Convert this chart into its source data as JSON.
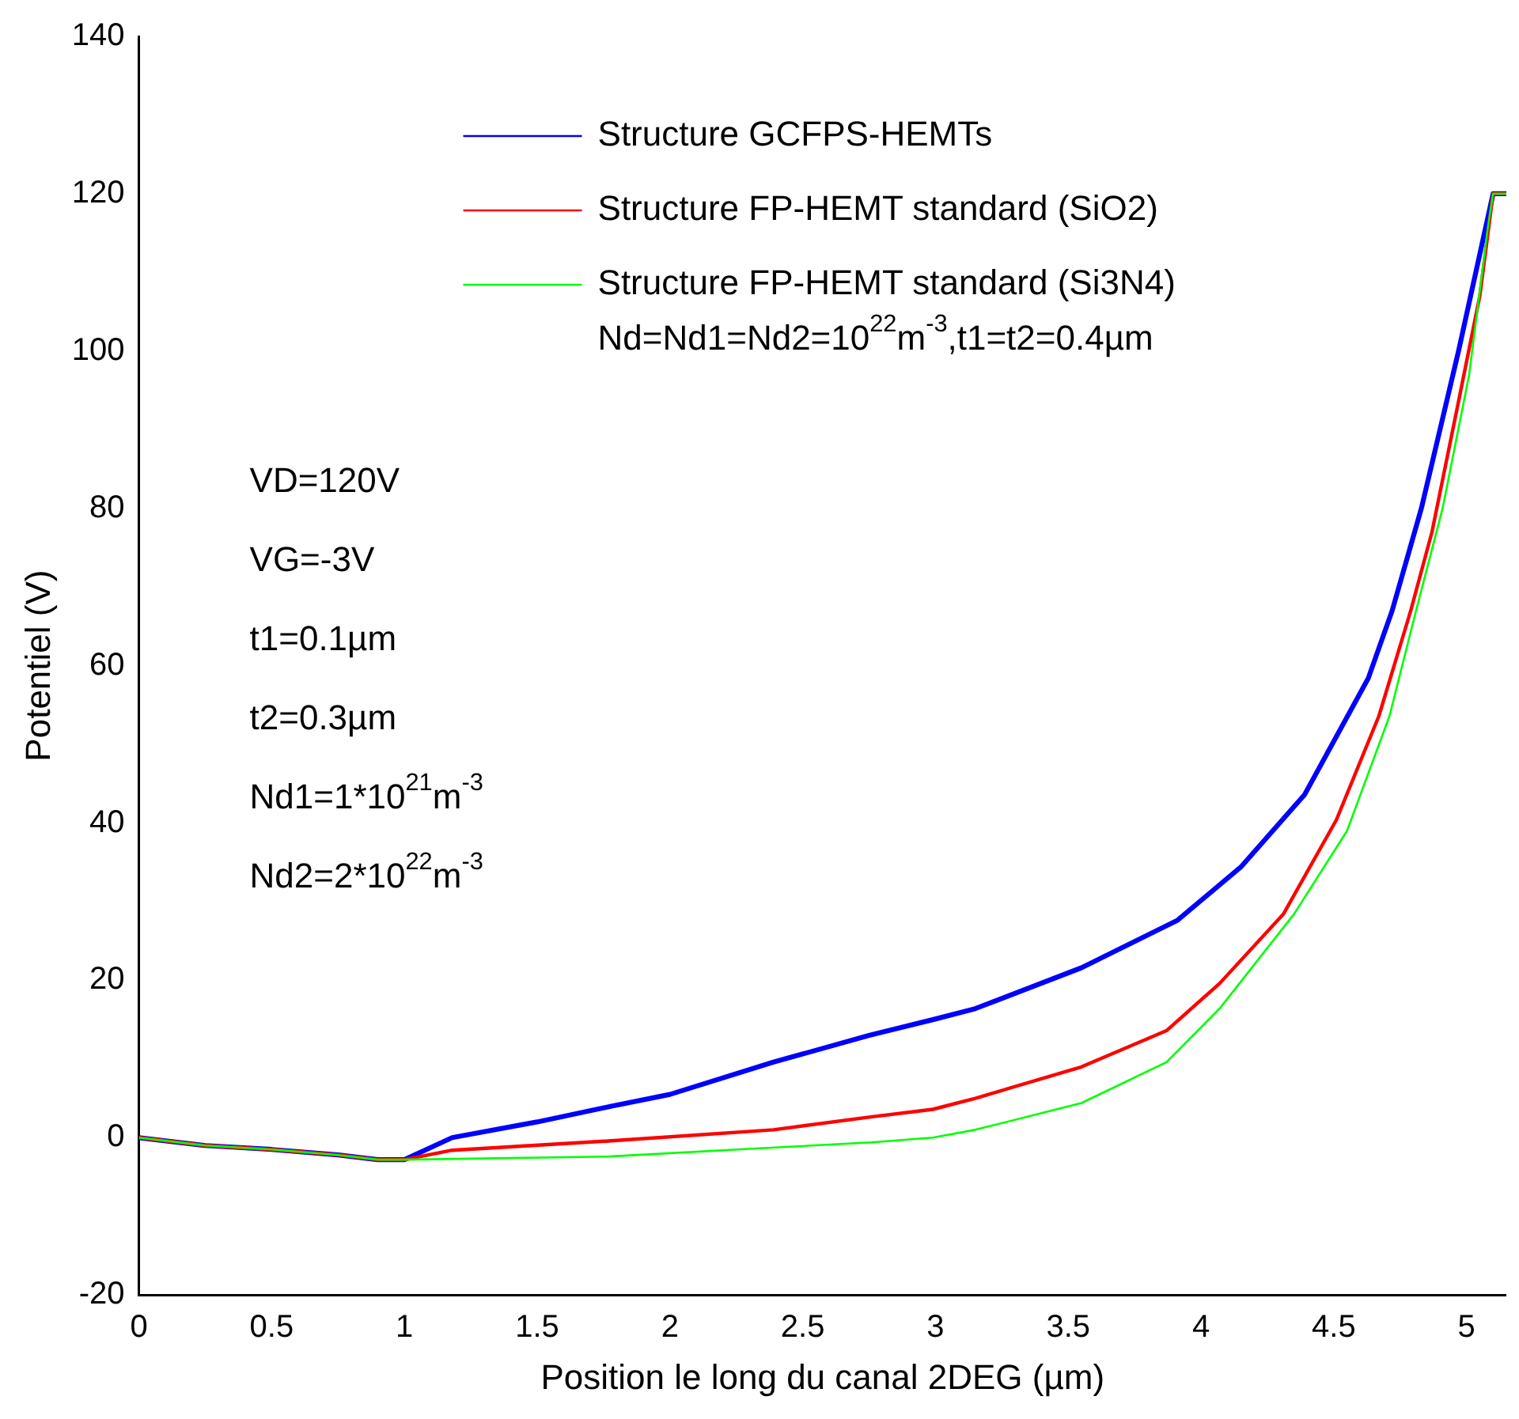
{
  "chart_data": {
    "type": "line",
    "xlabel": "Position le long du canal 2DEG (µm)",
    "ylabel": "Potentiel (V)",
    "xlim": [
      0,
      5.15
    ],
    "xticks": [
      0,
      0.5,
      1,
      1.5,
      2,
      2.5,
      3,
      3.5,
      4,
      4.5,
      5
    ],
    "ylim": [
      -20,
      140
    ],
    "yticks": [
      -20,
      0,
      20,
      40,
      60,
      80,
      100,
      120,
      140
    ],
    "grid": false,
    "legend": "top",
    "line_style": "solid",
    "marker": "none",
    "series": [
      {
        "name": "Structure GCFPS-HEMTs",
        "color": "#0000ff",
        "x": [
          0,
          0.25,
          0.5,
          0.75,
          0.9,
          1.0,
          1.18,
          1.5,
          1.78,
          2.0,
          2.39,
          2.75,
          2.99,
          3.15,
          3.55,
          3.91,
          4.15,
          4.39,
          4.63,
          4.72,
          4.83,
          4.97,
          5.1,
          5.15
        ],
        "values": [
          0,
          -1,
          -1.5,
          -2.2,
          -2.8,
          -2.8,
          0,
          2,
          4,
          5.5,
          9.6,
          13,
          15,
          16.4,
          21.6,
          27.6,
          34.4,
          43.6,
          58.4,
          67,
          80,
          100,
          120,
          120
        ]
      },
      {
        "name": "Structure FP-HEMT standard (SiO2)",
        "color": "#ff0000",
        "x": [
          0,
          0.25,
          0.5,
          0.75,
          0.9,
          1.0,
          1.18,
          1.78,
          2.39,
          2.75,
          2.99,
          3.15,
          3.55,
          3.87,
          4.07,
          4.31,
          4.51,
          4.67,
          4.79,
          4.87,
          4.97,
          5.05,
          5.1,
          5.15
        ],
        "values": [
          0,
          -1,
          -1.5,
          -2.2,
          -2.8,
          -2.8,
          -1.6,
          -0.4,
          1,
          2.6,
          3.6,
          5,
          9,
          13.6,
          19.6,
          28.4,
          40.4,
          53.6,
          67,
          77,
          93.6,
          107,
          120,
          120
        ]
      },
      {
        "name": "Structure FP-HEMT standard (Si3N4)",
        "color": "#00ff00",
        "x": [
          0,
          0.25,
          0.5,
          0.75,
          0.9,
          1.0,
          1.77,
          2.31,
          2.76,
          2.99,
          3.15,
          3.55,
          3.87,
          4.07,
          4.35,
          4.55,
          4.71,
          4.81,
          4.91,
          5.01,
          5.08,
          5.1,
          5.15
        ],
        "values": [
          0,
          -1,
          -1.5,
          -2.2,
          -2.8,
          -2.8,
          -2.4,
          -1.4,
          -0.6,
          0,
          1,
          4.4,
          9.6,
          16.4,
          28.4,
          39,
          53.6,
          67,
          80,
          97,
          115.6,
          120,
          120
        ]
      }
    ],
    "annotations": [
      "Nd=Nd1=Nd2=10$^{22}$m$^{-3}$,t1=t2=0.4µm",
      "VD=120V",
      "VG=-3V",
      "t1=0.1µm",
      "t2=0.3µm",
      "Nd1=1*10$^{21}$m$^{-3}$",
      "Nd2=2*10$^{22}$m$^{-3}$"
    ]
  }
}
